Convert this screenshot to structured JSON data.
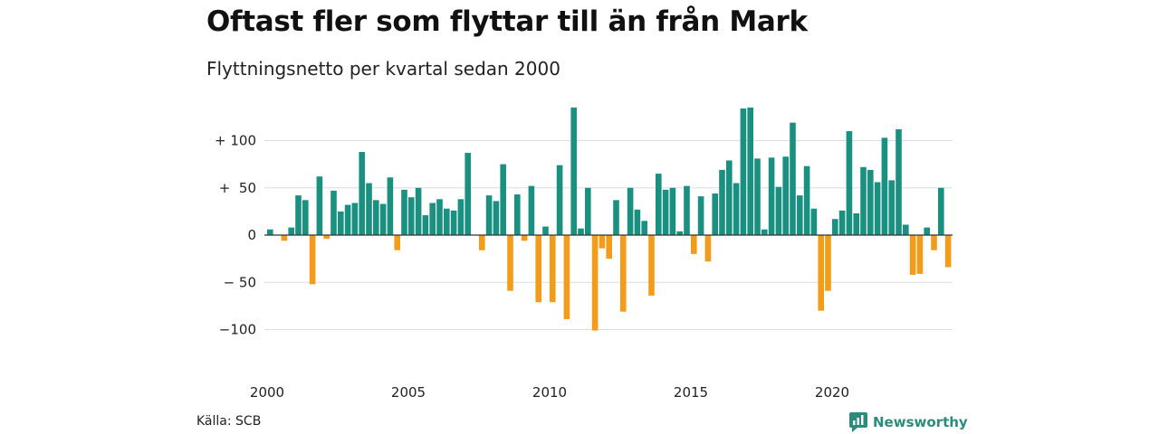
{
  "title": "Oftast fler som flyttar till än från Mark",
  "subtitle": "Flyttningsnetto per kvartal sedan 2000",
  "source": "Källa: SCB",
  "brand": "Newsworthy",
  "colors": {
    "positive": "#1a9080",
    "negative": "#f39c1a",
    "grid": "#dddddd",
    "brand": "#2b8c7e"
  },
  "chart_data": {
    "type": "bar",
    "x_start": "2000 Q1",
    "x_ticks": [
      "2000",
      "2005",
      "2010",
      "2015",
      "2020"
    ],
    "y_ticks": [
      {
        "value": 100,
        "label": "+ 100"
      },
      {
        "value": 50,
        "label": "+  50"
      },
      {
        "value": 0,
        "label": "0"
      },
      {
        "value": -50,
        "label": "− 50"
      },
      {
        "value": -100,
        "label": "−100"
      }
    ],
    "ylim": [
      -125,
      140
    ],
    "grid": true,
    "values": [
      6,
      0,
      -6,
      8,
      42,
      37,
      -52,
      62,
      -4,
      47,
      25,
      32,
      34,
      88,
      55,
      37,
      33,
      61,
      -16,
      48,
      40,
      50,
      21,
      34,
      38,
      28,
      26,
      38,
      87,
      0,
      -16,
      42,
      36,
      75,
      -59,
      43,
      -6,
      52,
      -71,
      9,
      -71,
      74,
      -89,
      135,
      7,
      50,
      -101,
      -14,
      -25,
      37,
      -81,
      50,
      27,
      15,
      -64,
      65,
      48,
      50,
      4,
      52,
      -20,
      41,
      -28,
      44,
      69,
      79,
      55,
      134,
      135,
      81,
      6,
      82,
      51,
      83,
      119,
      42,
      73,
      28,
      -80,
      -59,
      17,
      26,
      110,
      23,
      72,
      69,
      56,
      103,
      58,
      112,
      11,
      -42,
      -41,
      8,
      -16,
      50,
      -34
    ]
  }
}
